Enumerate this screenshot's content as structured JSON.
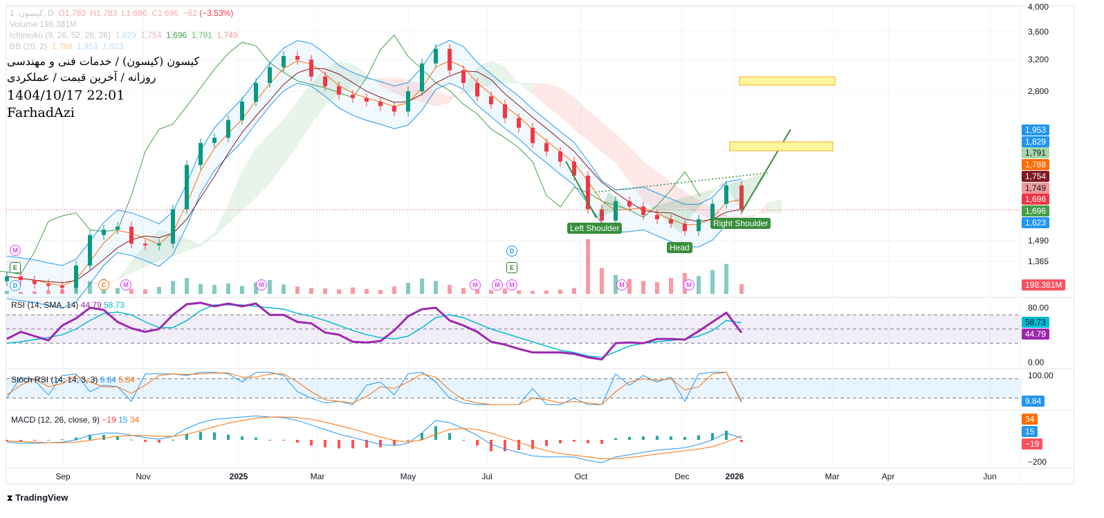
{
  "header": {
    "symbol_line": "کیسون, 1, D",
    "ohlc": {
      "o": "O1,783",
      "h": "H1,783",
      "l": "L1,696",
      "c": "C1,696",
      "change": "−62",
      "change_pct": "(−3.53%)"
    },
    "volume_line": "Volume 198.381M",
    "ichimoku_line": "Ichimoku (9, 26, 52, 26, 26)",
    "ichimoku_values": [
      "1,829",
      "1,754",
      "1,696",
      "1,791",
      "1,749"
    ],
    "bb_line": "BB (20, 2)",
    "bb_values": [
      "1,788",
      "1,953",
      "1,623"
    ],
    "overlay": {
      "title": "کیسون (کیسون) / خدمات فنی و مهندسی",
      "subtitle": "روزانه / آخرین قیمت / عملکردی",
      "datetime": "1404/10/17 22:01",
      "author": "FarhadAzi"
    }
  },
  "price_axis": {
    "ticks": [
      {
        "v": 4000,
        "t": "4,000"
      },
      {
        "v": 3600,
        "t": "3,600"
      },
      {
        "v": 3200,
        "t": "3,200"
      },
      {
        "v": 2800,
        "t": "2,800"
      },
      {
        "v": 1490,
        "t": "1,490"
      },
      {
        "v": 1365,
        "t": "1,365"
      }
    ],
    "labels": [
      {
        "t": "1,953",
        "bg": "#2196f3",
        "fg": "#ffffff"
      },
      {
        "t": "1,829",
        "bg": "#2196f3",
        "fg": "#ffffff"
      },
      {
        "t": "1,791",
        "bg": "#a5d6a7",
        "fg": "#131722"
      },
      {
        "t": "1,788",
        "bg": "#ff6d00",
        "fg": "#ffffff"
      },
      {
        "t": "1,754",
        "bg": "#801922",
        "fg": "#ffffff"
      },
      {
        "t": "1,749",
        "bg": "#ef9a9a",
        "fg": "#131722"
      },
      {
        "t": "1,696",
        "bg": "#f23645",
        "fg": "#ffffff"
      },
      {
        "t": "1,696",
        "bg": "#43a047",
        "fg": "#ffffff"
      },
      {
        "t": "1,623",
        "bg": "#2196f3",
        "fg": "#ffffff"
      }
    ],
    "volume_label": "198.381M"
  },
  "rsi": {
    "title": "RSI (14, SMA, 14)",
    "value": "44.79",
    "sma": "58.73",
    "ticks": [
      "80.00",
      "0.00"
    ]
  },
  "stoch": {
    "title": "Stoch RSI (14, 14, 3, 3)",
    "k": "9.84",
    "d": "5.84",
    "ticks": [
      "100.00"
    ]
  },
  "macd": {
    "title": "MACD (12, 26, close, 9)",
    "hist": "−19",
    "macd": "15",
    "signal": "34",
    "ticks": [
      "−200"
    ],
    "labels": [
      "34",
      "15",
      "−19"
    ]
  },
  "x_axis": [
    "Sep",
    "Nov",
    "2025",
    "Mar",
    "May",
    "Jul",
    "Oct",
    "Dec",
    "2026",
    "Mar",
    "Apr",
    "Jun"
  ],
  "patterns": {
    "left": "Left Shoulder",
    "head": "Head",
    "right": "Right Shoulder"
  },
  "markers": [
    "M",
    "E",
    "D",
    "C",
    "M",
    "M",
    "M",
    "M",
    "M",
    "D",
    "E",
    "M",
    "M"
  ],
  "brand": "TradingView",
  "colors": {
    "up": "#089981",
    "down": "#f23645",
    "rsi": "#9c27b0",
    "rsi_sma": "#00bcd4",
    "stoch_k": "#2196f3",
    "stoch_d": "#ff6d00",
    "pattern": "#388e3c",
    "target_box": "#fff59d"
  },
  "chart_data": {
    "type": "candlestick",
    "price_scale": "log",
    "ylim": [
      1200,
      4000
    ],
    "dates": [
      "2024-07-20",
      "2024-07-31",
      "2024-08-11",
      "2024-08-21",
      "2024-09-01",
      "2024-09-11",
      "2024-09-21",
      "2024-10-02",
      "2024-10-12",
      "2024-10-23",
      "2024-11-02",
      "2024-11-11",
      "2024-11-19",
      "2024-11-28",
      "2024-12-07",
      "2024-12-16",
      "2024-12-25",
      "2025-01-03",
      "2025-01-13",
      "2025-01-23",
      "2025-02-02",
      "2025-02-12",
      "2025-02-22",
      "2025-03-06",
      "2025-03-15",
      "2025-03-24",
      "2025-04-03",
      "2025-04-12",
      "2025-04-21",
      "2025-05-01",
      "2025-05-12",
      "2025-05-22",
      "2025-06-03",
      "2025-06-13",
      "2025-06-24",
      "2025-07-05",
      "2025-07-18",
      "2025-08-01",
      "2025-08-14",
      "2025-08-28",
      "2025-09-10",
      "2025-09-24",
      "2025-10-05",
      "2025-10-13",
      "2025-10-22",
      "2025-10-30",
      "2025-11-08",
      "2025-11-16",
      "2025-11-24",
      "2025-12-03",
      "2025-12-11",
      "2025-12-19",
      "2025-12-27",
      "2026-01-07"
    ],
    "close": [
      1280,
      1260,
      1240,
      1230,
      1220,
      1340,
      1525,
      1560,
      1580,
      1470,
      1460,
      1470,
      1700,
      2050,
      2250,
      2300,
      2480,
      2680,
      2900,
      3100,
      3250,
      3200,
      2980,
      2860,
      2760,
      2720,
      2680,
      2630,
      2570,
      2800,
      3150,
      3350,
      3060,
      2900,
      2740,
      2650,
      2500,
      2400,
      2250,
      2170,
      2080,
      1960,
      1700,
      1620,
      1760,
      1720,
      1660,
      1630,
      1600,
      1550,
      1630,
      1740,
      1880,
      1696
    ],
    "volume_m": [
      60,
      40,
      50,
      70,
      90,
      150,
      250,
      300,
      120,
      100,
      90,
      140,
      260,
      320,
      200,
      180,
      210,
      160,
      230,
      280,
      190,
      150,
      120,
      110,
      90,
      130,
      100,
      80,
      150,
      220,
      310,
      260,
      180,
      120,
      90,
      80,
      110,
      70,
      60,
      70,
      90,
      120,
      1100,
      520,
      380,
      300,
      260,
      240,
      320,
      420,
      360,
      480,
      600,
      198.381
    ],
    "rsi": [
      36,
      46,
      40,
      34,
      55,
      65,
      80,
      77,
      60,
      51,
      46,
      50,
      70,
      85,
      87,
      82,
      86,
      82,
      86,
      70,
      70,
      60,
      58,
      45,
      42,
      32,
      31,
      33,
      48,
      68,
      78,
      80,
      62,
      55,
      46,
      32,
      28,
      22,
      17,
      17,
      17,
      15,
      10,
      7,
      30,
      31,
      30,
      36,
      36,
      35,
      47,
      60,
      73,
      44.79
    ],
    "rsi_sma": [
      30,
      32,
      35,
      38,
      42,
      50,
      62,
      72,
      74,
      70,
      60,
      52,
      52,
      62,
      76,
      84,
      84,
      84,
      82,
      80,
      78,
      72,
      68,
      62,
      55,
      48,
      42,
      38,
      36,
      40,
      52,
      66,
      70,
      66,
      58,
      50,
      44,
      38,
      32,
      26,
      20,
      17,
      12,
      10,
      18,
      26,
      30,
      32,
      34,
      36,
      40,
      48,
      62,
      58.73
    ],
    "stoch_k": [
      20,
      85,
      75,
      30,
      90,
      95,
      40,
      60,
      55,
      10,
      95,
      95,
      95,
      90,
      100,
      100,
      95,
      70,
      100,
      100,
      90,
      40,
      20,
      5,
      10,
      0,
      60,
      70,
      30,
      95,
      100,
      70,
      20,
      5,
      0,
      0,
      0,
      0,
      50,
      0,
      0,
      20,
      0,
      0,
      95,
      60,
      90,
      70,
      85,
      10,
      95,
      100,
      100,
      9.84
    ],
    "stoch_d": [
      30,
      60,
      80,
      55,
      65,
      90,
      70,
      55,
      55,
      35,
      60,
      90,
      95,
      93,
      95,
      98,
      98,
      85,
      85,
      95,
      95,
      70,
      40,
      15,
      10,
      5,
      25,
      55,
      50,
      70,
      95,
      85,
      45,
      15,
      5,
      0,
      0,
      0,
      20,
      15,
      5,
      10,
      5,
      0,
      40,
      70,
      80,
      75,
      80,
      45,
      55,
      95,
      100,
      5.84
    ],
    "macd": [
      -20,
      -30,
      -30,
      -25,
      -20,
      0,
      40,
      60,
      60,
      40,
      20,
      5,
      30,
      100,
      150,
      180,
      190,
      200,
      210,
      200,
      195,
      170,
      130,
      90,
      50,
      20,
      -10,
      -40,
      -50,
      -30,
      60,
      170,
      150,
      100,
      40,
      -40,
      -80,
      -110,
      -140,
      -150,
      -150,
      -150,
      -180,
      -200,
      -150,
      -130,
      -110,
      -90,
      -80,
      -70,
      -40,
      0,
      60,
      15
    ],
    "macd_signal": [
      -10,
      -15,
      -22,
      -25,
      -25,
      -20,
      -5,
      15,
      30,
      38,
      38,
      30,
      30,
      50,
      80,
      115,
      145,
      170,
      190,
      200,
      200,
      195,
      180,
      155,
      125,
      95,
      60,
      25,
      -5,
      -20,
      0,
      50,
      90,
      100,
      90,
      60,
      20,
      -20,
      -60,
      -95,
      -120,
      -135,
      -150,
      -165,
      -165,
      -155,
      -140,
      -125,
      -110,
      -95,
      -80,
      -60,
      -20,
      34
    ]
  }
}
